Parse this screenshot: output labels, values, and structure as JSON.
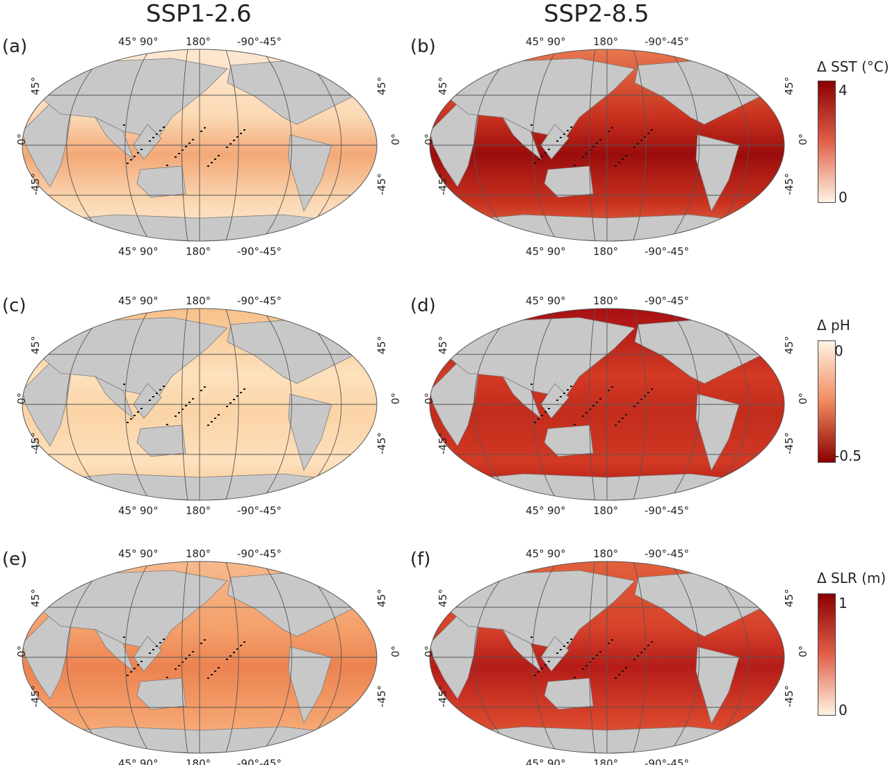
{
  "columns": [
    "SSP1-2.6",
    "SSP2-8.5"
  ],
  "panels": [
    {
      "id": "a",
      "label": "(a)",
      "variable": "SST",
      "scenario": "SSP1-2.6",
      "ocean_color": "#fbd9b4",
      "warm_color": "#f3a877",
      "pole_color": "#fde8d2"
    },
    {
      "id": "b",
      "label": "(b)",
      "variable": "SST",
      "scenario": "SSP2-8.5",
      "ocean_color": "#c9321f",
      "warm_color": "#9a0d0d",
      "pole_color": "#e7774f"
    },
    {
      "id": "c",
      "label": "(c)",
      "variable": "pH",
      "scenario": "SSP1-2.6",
      "ocean_color": "#fde1bd",
      "warm_color": "#fbd3a6",
      "pole_color": "#f7c089"
    },
    {
      "id": "d",
      "label": "(d)",
      "variable": "pH",
      "scenario": "SSP2-8.5",
      "ocean_color": "#d23a24",
      "warm_color": "#c32b1c",
      "pole_color": "#a80f12"
    },
    {
      "id": "e",
      "label": "(e)",
      "variable": "SLR",
      "scenario": "SSP1-2.6",
      "ocean_color": "#f4a06b",
      "warm_color": "#ec8351",
      "pole_color": "#f7b98c"
    },
    {
      "id": "f",
      "label": "(f)",
      "variable": "SLR",
      "scenario": "SSP2-8.5",
      "ocean_color": "#d6412a",
      "warm_color": "#b51c18",
      "pole_color": "#e1603c"
    }
  ],
  "graticule": {
    "lon_labels": [
      "45°",
      "90°",
      "180°",
      "-90°",
      "-45°"
    ],
    "lat_labels": [
      "45°",
      "0°",
      "-45°"
    ]
  },
  "colorbars": [
    {
      "title": "Δ SST (°C)",
      "max_label": "4",
      "min_label": "0",
      "top_color": "#8b0000",
      "bottom_color": "#fff3e3"
    },
    {
      "title": "Δ pH",
      "max_label": "0",
      "min_label": "-0.5",
      "top_color": "#fff3e3",
      "bottom_color": "#8b0000"
    },
    {
      "title": "Δ SLR (m)",
      "max_label": "1",
      "min_label": "0",
      "top_color": "#8b0000",
      "bottom_color": "#fff3e3"
    }
  ],
  "land_color": "#c8c8c8",
  "graticule_color": "#555555"
}
